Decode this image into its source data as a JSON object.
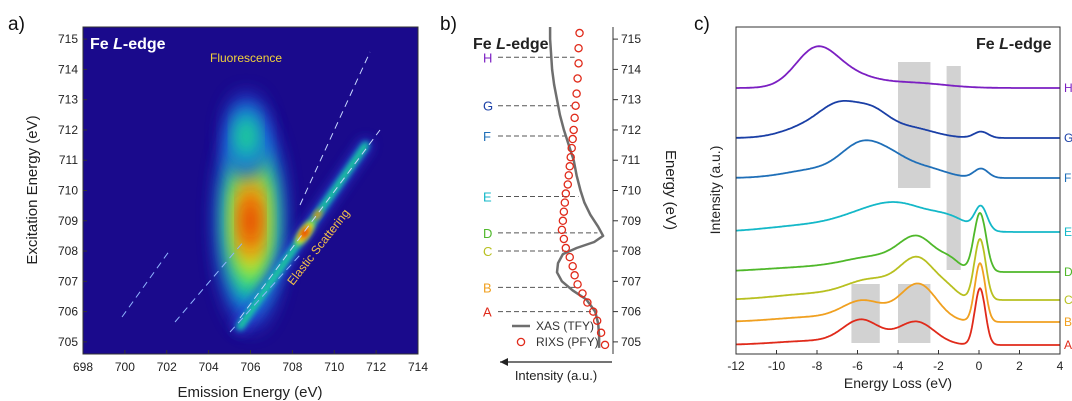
{
  "panels": {
    "a": {
      "letter": "a)",
      "title": "Fe ",
      "title_italic": "L",
      "title_suffix": "-edge",
      "xlabel": "Emission Energy (eV)",
      "ylabel": "Excitation Energy (eV)",
      "fluorescence_label": "Fluorescence",
      "elastic_label": "Elastic Scattering"
    },
    "b": {
      "letter": "b)",
      "title": "Fe ",
      "title_italic": "L",
      "title_suffix": "-edge",
      "xlabel": "Intensity (a.u.)",
      "ylabel": "Energy (eV)",
      "legend_xas": "XAS (TFY)",
      "legend_rixs": "RIXS (PFY)"
    },
    "c": {
      "letter": "c)",
      "title": "Fe ",
      "title_italic": "L",
      "title_suffix": "-edge",
      "xlabel": "Energy Loss (eV)",
      "ylabel": "Intensity (a.u.)"
    }
  },
  "chart_data": [
    {
      "type": "heatmap",
      "x_range": [
        698,
        714
      ],
      "y_range": [
        704.6,
        715.4
      ],
      "xticks": [
        "698",
        "700",
        "702",
        "704",
        "706",
        "708",
        "710",
        "712",
        "714"
      ],
      "yticks": [
        "705",
        "706",
        "707",
        "708",
        "709",
        "710",
        "711",
        "712",
        "713",
        "714",
        "715"
      ],
      "colormap": [
        "#1a0a8c",
        "#2a3fd0",
        "#00b0e0",
        "#30e070",
        "#d8f020",
        "#ff8c00",
        "#e02000"
      ],
      "features": [
        {
          "name": "Fluorescence",
          "emission_center": 706.0,
          "excitation_center": 709.0,
          "emission_width": 1.6,
          "excitation_width": 3.6,
          "peak": 1.0
        },
        {
          "name": "Fluorescence upper",
          "emission_center": 705.8,
          "excitation_center": 711.8,
          "emission_width": 1.0,
          "excitation_width": 1.4,
          "peak": 0.55
        },
        {
          "name": "Elastic Scattering",
          "type": "diagonal",
          "excitation_start": 705.5,
          "excitation_end": 711.5,
          "peak_excitation": 708.6,
          "peak": 0.95
        }
      ]
    },
    {
      "type": "line",
      "orientation": "energy-vertical",
      "y_range": [
        704.6,
        715.4
      ],
      "yticks": [
        "705",
        "706",
        "707",
        "708",
        "709",
        "710",
        "711",
        "712",
        "713",
        "714",
        "715"
      ],
      "series": [
        {
          "name": "XAS (TFY)",
          "energy": [
            704.8,
            705.2,
            705.6,
            706.0,
            706.4,
            706.7,
            707.0,
            707.3,
            707.6,
            707.9,
            708.1,
            708.3,
            708.5,
            708.8,
            709.2,
            709.6,
            710.0,
            710.5,
            711.0,
            711.5,
            712.0,
            712.5,
            713.0,
            713.5,
            714.0,
            714.5,
            715.0,
            715.4
          ],
          "intensity": [
            0.93,
            0.93,
            0.92,
            0.89,
            0.8,
            0.66,
            0.55,
            0.5,
            0.51,
            0.56,
            0.7,
            0.88,
            0.97,
            0.92,
            0.84,
            0.78,
            0.74,
            0.7,
            0.67,
            0.62,
            0.57,
            0.53,
            0.5,
            0.47,
            0.45,
            0.44,
            0.43,
            0.43
          ]
        },
        {
          "name": "RIXS (PFY)",
          "energy": [
            704.9,
            705.3,
            705.7,
            706.0,
            706.3,
            706.6,
            706.9,
            707.2,
            707.5,
            707.8,
            708.1,
            708.4,
            708.7,
            709.0,
            709.3,
            709.6,
            709.9,
            710.2,
            710.5,
            710.8,
            711.1,
            711.4,
            711.7,
            712.0,
            712.4,
            712.8,
            713.2,
            713.7,
            714.2,
            714.7,
            715.2
          ],
          "intensity": [
            0.99,
            0.95,
            0.91,
            0.87,
            0.81,
            0.76,
            0.71,
            0.68,
            0.66,
            0.63,
            0.59,
            0.57,
            0.55,
            0.56,
            0.57,
            0.58,
            0.59,
            0.61,
            0.62,
            0.63,
            0.64,
            0.65,
            0.66,
            0.67,
            0.68,
            0.69,
            0.7,
            0.71,
            0.72,
            0.72,
            0.73
          ]
        }
      ],
      "markers": [
        {
          "label": "H",
          "energy": 714.4,
          "color": "#7b1fc2"
        },
        {
          "label": "G",
          "energy": 712.8,
          "color": "#1a3fa6"
        },
        {
          "label": "F",
          "energy": 711.8,
          "color": "#1f6fb8"
        },
        {
          "label": "E",
          "energy": 709.8,
          "color": "#14b8c8"
        },
        {
          "label": "D",
          "energy": 708.6,
          "color": "#4fb82a"
        },
        {
          "label": "C",
          "energy": 708.0,
          "color": "#b8c020"
        },
        {
          "label": "B",
          "energy": 706.8,
          "color": "#f0a020"
        },
        {
          "label": "A",
          "energy": 706.0,
          "color": "#e02a1a"
        }
      ]
    },
    {
      "type": "line",
      "x_range": [
        -12,
        4
      ],
      "xticks": [
        "-12",
        "-10",
        "-8",
        "-6",
        "-4",
        "-2",
        "0",
        "2",
        "4"
      ],
      "shaded_regions": [
        {
          "x0": -4.0,
          "x1": -2.4,
          "spectra": "E-H"
        },
        {
          "x0": -1.6,
          "x1": -0.9,
          "spectra": "D-H"
        },
        {
          "x0": -6.3,
          "x1": -4.9,
          "spectra": "A-B"
        },
        {
          "x0": -4.0,
          "x1": -2.4,
          "spectra": "A-B"
        }
      ],
      "series": [
        {
          "name": "H",
          "color": "#7b1fc2"
        },
        {
          "name": "G",
          "color": "#1a3fa6"
        },
        {
          "name": "F",
          "color": "#1f6fb8"
        },
        {
          "name": "E",
          "color": "#14b8c8"
        },
        {
          "name": "D",
          "color": "#4fb82a"
        },
        {
          "name": "C",
          "color": "#b8c020"
        },
        {
          "name": "B",
          "color": "#f0a020"
        },
        {
          "name": "A",
          "color": "#e02a1a"
        }
      ]
    }
  ]
}
